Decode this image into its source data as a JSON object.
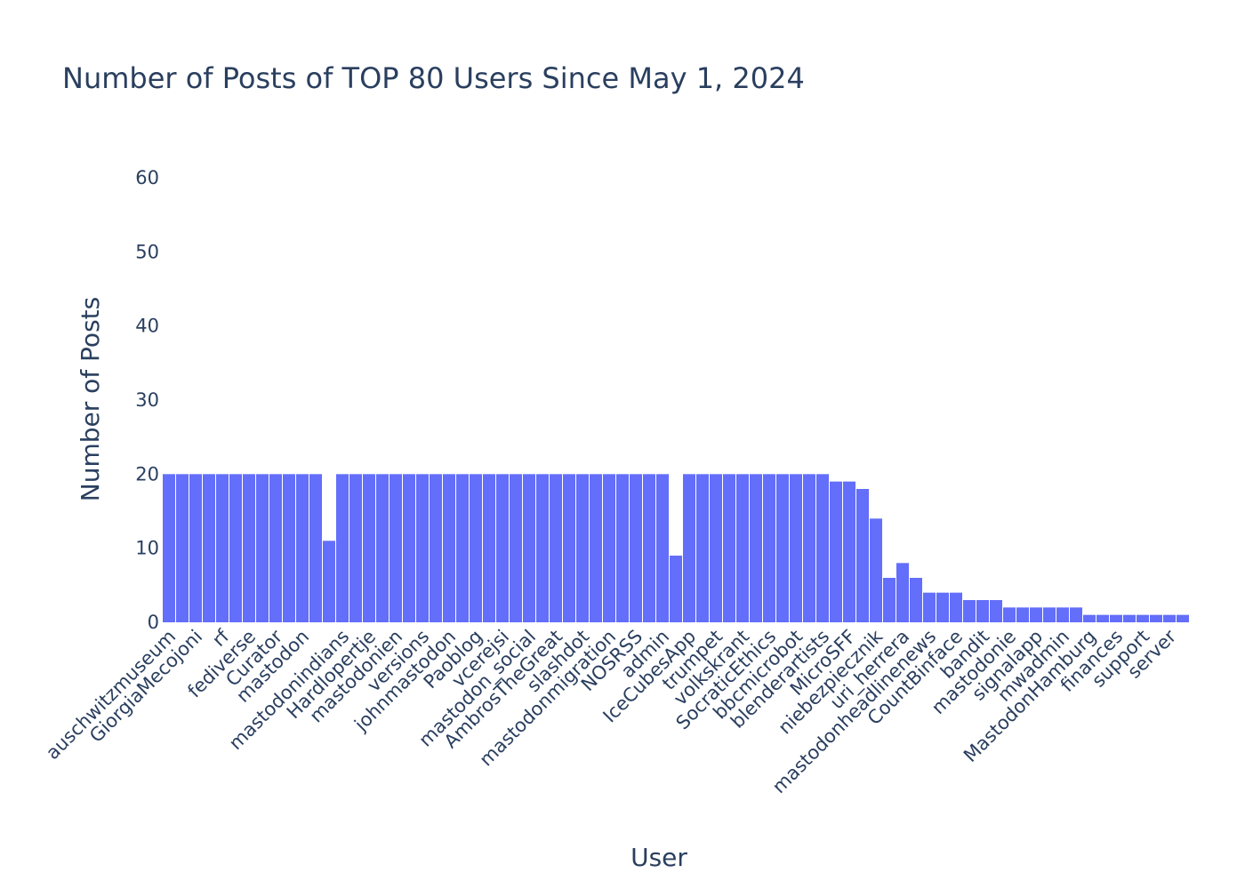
{
  "chart_data": {
    "type": "bar",
    "title": "Number of Posts of TOP 80 Users Since May 1, 2024",
    "xlabel": "User",
    "ylabel": "Number of Posts",
    "ylim": [
      0,
      60
    ],
    "yticks": [
      0,
      10,
      20,
      30,
      40,
      50,
      60
    ],
    "grid": false,
    "bar_color": "#636efa",
    "categories": [
      "auschwitzmuseum",
      "GiorgiaMecojoni",
      "rf",
      "fediverse",
      "Curator",
      "mastodon",
      "mastodonindians",
      "Hardlopertje",
      "mastodonien",
      "versions",
      "johnmastodon",
      "Paoblog",
      "vcerejsi",
      "mastodon_social",
      "AmbrosTheGreat",
      "slashdot",
      "mastodonmigration",
      "NOSRSS",
      "admin",
      "IceCubesApp",
      "trumpet",
      "volkskrant",
      "SocraticEthics",
      "bbcmicrobot",
      "blenderartists",
      "MicroSFF",
      "niebezpiecznik",
      "uri_herrera",
      "mastodonheadlinenews",
      "CountBinface",
      "bandit",
      "mastodonie",
      "signalapp",
      "mwadmin",
      "MastodonHamburg",
      "finances",
      "support",
      "server"
    ],
    "values": [
      {
        "parts": [
          20,
          20
        ]
      },
      {
        "parts": [
          20,
          20
        ]
      },
      {
        "parts": [
          20,
          20
        ]
      },
      {
        "parts": [
          20,
          20
        ]
      },
      {
        "parts": [
          20,
          20
        ]
      },
      {
        "parts": [
          20,
          20,
          11
        ]
      },
      {
        "parts": [
          20,
          20
        ]
      },
      {
        "parts": [
          20,
          20
        ]
      },
      {
        "parts": [
          20,
          20
        ]
      },
      {
        "parts": [
          20,
          20
        ]
      },
      {
        "parts": [
          20,
          20
        ]
      },
      {
        "parts": [
          20,
          20
        ]
      },
      {
        "parts": [
          20,
          20
        ]
      },
      {
        "parts": [
          20,
          20
        ]
      },
      {
        "parts": [
          20,
          20
        ]
      },
      {
        "parts": [
          20,
          20
        ]
      },
      {
        "parts": [
          20,
          20
        ]
      },
      {
        "parts": [
          20,
          20
        ]
      },
      {
        "parts": [
          20,
          9
        ]
      },
      {
        "parts": [
          20,
          20
        ]
      },
      {
        "parts": [
          20,
          20
        ]
      },
      {
        "parts": [
          20,
          20
        ]
      },
      {
        "parts": [
          20,
          20
        ]
      },
      {
        "parts": [
          20,
          20
        ]
      },
      {
        "parts": [
          20,
          19
        ]
      },
      {
        "parts": [
          19,
          18
        ]
      },
      {
        "parts": [
          14,
          6
        ]
      },
      {
        "parts": [
          8,
          6
        ]
      },
      {
        "parts": [
          4,
          4
        ]
      },
      {
        "parts": [
          4,
          3
        ]
      },
      {
        "parts": [
          3,
          3
        ]
      },
      {
        "parts": [
          2,
          2
        ]
      },
      {
        "parts": [
          2,
          2
        ]
      },
      {
        "parts": [
          2,
          2
        ]
      },
      {
        "parts": [
          1,
          1
        ]
      },
      {
        "parts": [
          1,
          1
        ]
      },
      {
        "parts": [
          1,
          1
        ]
      },
      {
        "parts": [
          1,
          1
        ]
      }
    ]
  }
}
